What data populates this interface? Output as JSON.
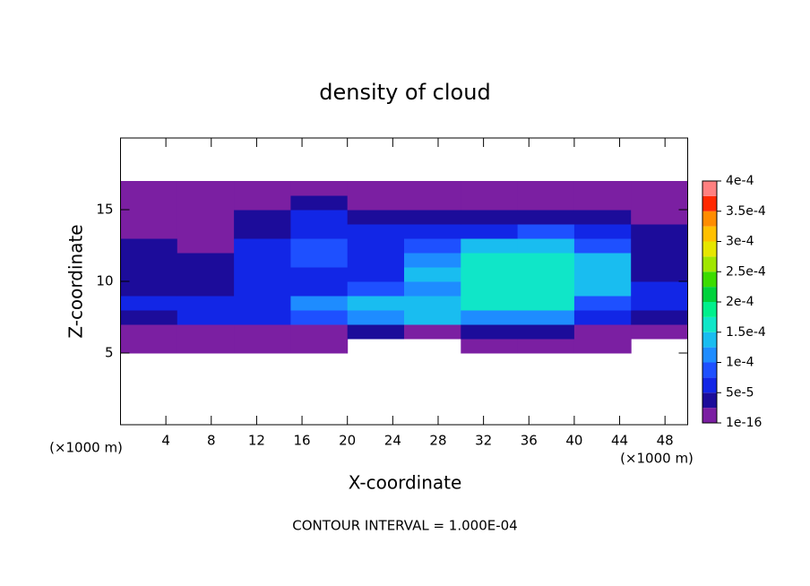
{
  "chart_data": {
    "type": "contour",
    "title": "density of cloud",
    "x_label": "X-coordinate",
    "y_label": "Z-coordinate",
    "x_unit": "(×1000 m)",
    "footnote": "CONTOUR INTERVAL = 1.000E-04",
    "xlim": [
      0,
      50
    ],
    "ylim": [
      0,
      20
    ],
    "xticks": [
      4,
      8,
      12,
      16,
      20,
      24,
      28,
      32,
      36,
      40,
      44,
      48
    ],
    "yticks": [
      5,
      10,
      15
    ],
    "x": [
      2.5,
      7.5,
      12.5,
      17.5,
      22.5,
      27.5,
      32.5,
      37.5,
      42.5,
      47.5
    ],
    "y": [
      5.5,
      6.5,
      7.5,
      8.5,
      9.5,
      10.5,
      11.5,
      12.5,
      13.5,
      14.5,
      15.5,
      16.5
    ],
    "z": [
      [
        1e-05,
        1e-05,
        1e-05,
        1e-05,
        null,
        null,
        1e-05,
        1e-05,
        1e-05,
        null
      ],
      [
        2e-05,
        2e-05,
        2e-05,
        2e-05,
        3e-05,
        2e-05,
        4e-05,
        4e-05,
        2e-05,
        2e-05
      ],
      [
        4e-05,
        6e-05,
        7e-05,
        9e-05,
        0.00012,
        0.00013,
        0.00012,
        0.00011,
        6e-05,
        4e-05
      ],
      [
        5e-05,
        5e-05,
        6e-05,
        0.00011,
        0.00013,
        0.00013,
        0.00016,
        0.00015,
        9e-05,
        5e-05
      ],
      [
        4e-05,
        4e-05,
        5e-05,
        7e-05,
        9e-05,
        0.00012,
        0.00017,
        0.00017,
        0.00013,
        5e-05
      ],
      [
        3e-05,
        4e-05,
        5e-05,
        6e-05,
        7e-05,
        0.00013,
        0.00016,
        0.00017,
        0.00014,
        4e-05
      ],
      [
        4e-05,
        3e-05,
        6e-05,
        8e-05,
        6e-05,
        0.00012,
        0.00016,
        0.00016,
        0.00013,
        4e-05
      ],
      [
        3e-05,
        2e-05,
        5e-05,
        9e-05,
        6e-05,
        9e-05,
        0.00013,
        0.00014,
        8e-05,
        3e-05
      ],
      [
        2e-05,
        2e-05,
        4e-05,
        7e-05,
        5e-05,
        5e-05,
        7e-05,
        8e-05,
        5e-05,
        3e-05
      ],
      [
        1e-05,
        2e-05,
        3e-05,
        5e-05,
        4e-05,
        3e-05,
        3e-05,
        4e-05,
        3e-05,
        2e-05
      ],
      [
        1e-05,
        1e-05,
        2e-05,
        3e-05,
        2e-05,
        2e-05,
        2e-05,
        2e-05,
        2e-05,
        2e-05
      ],
      [
        1e-05,
        1e-05,
        1e-05,
        1e-05,
        1e-05,
        1e-05,
        1e-05,
        1e-05,
        1e-05,
        1e-05
      ]
    ],
    "levels": [
      1e-16,
      2.5e-05,
      5e-05,
      7.5e-05,
      0.0001,
      0.000125,
      0.00015,
      0.000175,
      0.0002,
      0.000225,
      0.00025,
      0.000275,
      0.0003,
      0.000325,
      0.00035,
      0.000375,
      0.0004
    ],
    "colors": [
      "#7b1fa2",
      "#1c0c9a",
      "#1226e6",
      "#1e50ff",
      "#1e8cff",
      "#19bdf0",
      "#10e6c8",
      "#00f08c",
      "#00d23c",
      "#3cdc00",
      "#a0e600",
      "#e6e600",
      "#ffc000",
      "#ff8c00",
      "#ff2800",
      "#ff8080"
    ],
    "colorbar_ticks": [
      {
        "value": 1e-16,
        "label": "1e-16"
      },
      {
        "value": 5e-05,
        "label": "5e-5"
      },
      {
        "value": 0.0001,
        "label": "1e-4"
      },
      {
        "value": 0.00015,
        "label": "1.5e-4"
      },
      {
        "value": 0.0002,
        "label": "2e-4"
      },
      {
        "value": 0.00025,
        "label": "2.5e-4"
      },
      {
        "value": 0.0003,
        "label": "3e-4"
      },
      {
        "value": 0.00035,
        "label": "3.5e-4"
      },
      {
        "value": 0.0004,
        "label": "4e-4"
      }
    ]
  }
}
